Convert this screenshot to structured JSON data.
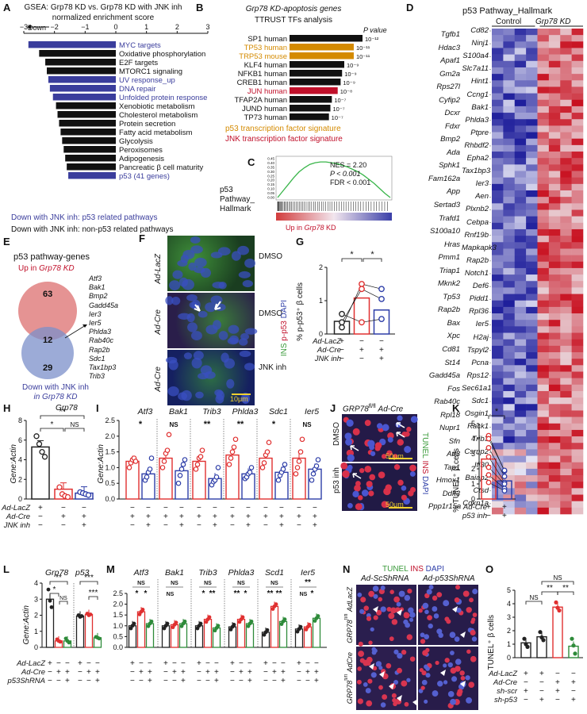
{
  "panels": {
    "A": {
      "letter": "A",
      "title1": "GSEA: Grp78 KD vs. Grp78 KD with JNK inh",
      "title2": "normalized enrichment score",
      "down_label": "Down",
      "ticks": [
        "−3",
        "−2",
        "−1",
        "0",
        "1",
        "2",
        "3"
      ],
      "colors": {
        "p53": "#3a3d9c",
        "other": "#111111"
      },
      "bars": [
        {
          "label": "MYC targets",
          "value": -2.85,
          "group": "p53"
        },
        {
          "label": "Oxidative phosphorylation",
          "value": -2.5,
          "group": "other"
        },
        {
          "label": "E2F targets",
          "value": -2.3,
          "group": "other"
        },
        {
          "label": "MTORC1 signaling",
          "value": -2.25,
          "group": "other"
        },
        {
          "label": "UV response_up",
          "value": -2.2,
          "group": "p53"
        },
        {
          "label": "DNA repair",
          "value": -2.15,
          "group": "p53"
        },
        {
          "label": "Unfolded protein response",
          "value": -2.05,
          "group": "p53"
        },
        {
          "label": "Xenobiotic metabolism",
          "value": -1.95,
          "group": "other"
        },
        {
          "label": "Cholesterol metabolism",
          "value": -1.9,
          "group": "other"
        },
        {
          "label": "Protein secretion",
          "value": -1.85,
          "group": "other"
        },
        {
          "label": "Fatty acid metabolism",
          "value": -1.8,
          "group": "other"
        },
        {
          "label": "Glycolysis",
          "value": -1.75,
          "group": "other"
        },
        {
          "label": "Peroxisomes",
          "value": -1.7,
          "group": "other"
        },
        {
          "label": "Adipogenesis",
          "value": -1.65,
          "group": "other"
        },
        {
          "label": "Pancreatic β cell maturity",
          "value": -1.6,
          "group": "other"
        },
        {
          "label": "p53 (41 genes)",
          "value": -1.55,
          "group": "p53"
        }
      ],
      "legend_p53": "Down with JNK inh: p53 related pathways",
      "legend_other": "Down with JNK inh: non-p53 related pathways"
    },
    "B": {
      "letter": "B",
      "title1": "Grp78 KD-apoptosis genes",
      "title2": "TTRUST TFs analysis",
      "pvalue_header": "P value",
      "bars": [
        {
          "label": "SP1 human",
          "len": 1.0,
          "p": "10⁻¹²",
          "color": "#111111"
        },
        {
          "label": "TP53 human",
          "len": 0.88,
          "p": "10⁻¹¹",
          "color": "#d48a00"
        },
        {
          "label": "TRP53 mouse",
          "len": 0.88,
          "p": "10⁻¹¹",
          "color": "#d48a00"
        },
        {
          "label": "KLF4 human",
          "len": 0.75,
          "p": "10⁻⁹",
          "color": "#111111"
        },
        {
          "label": "NFKB1 human",
          "len": 0.72,
          "p": "10⁻⁹",
          "color": "#111111"
        },
        {
          "label": "CREB1 human",
          "len": 0.7,
          "p": "10⁻⁹",
          "color": "#111111"
        },
        {
          "label": "JUN human",
          "len": 0.66,
          "p": "10⁻⁸",
          "color": "#c0102a"
        },
        {
          "label": "TFAP2A human",
          "len": 0.58,
          "p": "10⁻⁷",
          "color": "#111111"
        },
        {
          "label": "JUND human",
          "len": 0.56,
          "p": "10⁻⁷",
          "color": "#111111"
        },
        {
          "label": "TP73 human",
          "len": 0.54,
          "p": "10⁻⁷",
          "color": "#111111"
        }
      ],
      "sig1": "p53 transcription factor signature",
      "sig2": "JNK transcription factor signature"
    },
    "C": {
      "letter": "C",
      "yticks": [
        "0.45",
        "0.40",
        "0.35",
        "0.30",
        "0.25",
        "0.20",
        "0.15",
        "0.10",
        "0.05",
        "0.00"
      ],
      "nes": "NES = 2.20",
      "p": "P < 0.001",
      "fdr": "FDR < 0.001",
      "label1": "p53",
      "label2": "Pathway_",
      "label3": "Hallmark",
      "xlabel": "Up in Grp78 KD",
      "curve": [
        0,
        0.08,
        0.16,
        0.24,
        0.31,
        0.36,
        0.4,
        0.42,
        0.43,
        0.43,
        0.42,
        0.41,
        0.39,
        0.37,
        0.34,
        0.31,
        0.27,
        0.22,
        0.17,
        0.11,
        0.05,
        0.0
      ]
    },
    "D": {
      "letter": "D",
      "title": "p53 Pathway_Hallmark",
      "col_control": "Control",
      "col_kd": "Grp78 KD",
      "genes_left": [
        "Tgfb1",
        "Hdac3",
        "Apaf1",
        "Gm2a",
        "Rps27l",
        "Cyfip2",
        "Dcxr",
        "Fdxr",
        "Bmp2",
        "Ada",
        "Sphk1",
        "Fam162a",
        "App",
        "Sertad3",
        "Trafd1",
        "S100a10",
        "Hras",
        "Pmm1",
        "Triap1",
        "Mknk2",
        "Tp53",
        "Rap2b",
        "Bax",
        "Xpc",
        "Cd81",
        "St14",
        "Gadd45a",
        "Fos",
        "Rab40c",
        "Rpl18",
        "Nupr1",
        "Sfn",
        "Atf3",
        "Tap1",
        "Hmox1",
        "Ddit3",
        "Ppp1r15a"
      ],
      "genes_right": [
        "Cd82",
        "Ninj1",
        "S100a4",
        "Slc7a11",
        "Hint1",
        "Ccng1",
        "Bak1",
        "Phlda3",
        "Ptpre",
        "Rhbdf2",
        "Epha2",
        "Tax1bp3",
        "Ier3",
        "Aen",
        "Plxnb2",
        "Cebpa",
        "Rnf19b",
        "Mapkapk3",
        "Rap2b",
        "Notch1",
        "Def6",
        "Pidd1",
        "Rpl36",
        "Ier5",
        "H2aj",
        "Tspyl2",
        "Pcna",
        "Rps12",
        "Sec61a1",
        "Sdc1",
        "Osgin1",
        "Rack1",
        "Trib3",
        "Csrnp2",
        "Ifi30",
        "Baiap2",
        "Ctsd",
        "Cdkn1a"
      ]
    },
    "E": {
      "letter": "E",
      "title": "p53 pathway-genes",
      "up_label": "Up in Grp78 KD",
      "down_label1": "Down with JNK inh",
      "down_label2": "in Grp78 KD",
      "n_up": "63",
      "n_both": "12",
      "n_down": "29",
      "genes": [
        "Atf3",
        "Bak1",
        "Bmp2",
        "Gadd45a",
        "Ier3",
        "Ier5",
        "Phlda3",
        "Rab40c",
        "Rap2b",
        "Sdc1",
        "Tax1bp3",
        "Trib3"
      ]
    },
    "F": {
      "letter": "F",
      "rows": [
        {
          "side": "Ad-LacZ",
          "cond": "DMSO"
        },
        {
          "side": "Ad-Cre",
          "cond": "DMSO"
        },
        {
          "side": "Ad-Cre",
          "cond": "JNK inh"
        }
      ],
      "stain_ins": "INS",
      "stain_pp53": "p-p53",
      "stain_dapi": "DAPI",
      "scale": "10μm"
    },
    "G": {
      "letter": "G",
      "ylabel": "% p-p53⁺ β cells",
      "yticks": [
        "0",
        "1",
        "2"
      ],
      "ymax": 2,
      "bars": [
        0.38,
        1.08,
        0.72
      ],
      "colors": [
        "#222222",
        "#e03030",
        "#2e3ea8"
      ],
      "points": [
        [
          0.2,
          0.35,
          0.6
        ],
        [
          1.5,
          1.35,
          0.35
        ],
        [
          1.35,
          1.05,
          0.45
        ]
      ],
      "sig": [
        "*",
        "*"
      ],
      "rows": [
        {
          "label": "Ad-LacZ",
          "marks": [
            "+",
            "−",
            "−"
          ]
        },
        {
          "label": "Ad-Cre",
          "marks": [
            "−",
            "+",
            "+"
          ]
        },
        {
          "label": "JNK inh",
          "marks": [
            "−",
            "−",
            "+"
          ]
        }
      ]
    },
    "H": {
      "letter": "H",
      "title": "Grp78",
      "ylabel": "Gene:Actin",
      "yticks": [
        "0",
        "2",
        "4",
        "6",
        "8"
      ],
      "ymax": 8,
      "bars": [
        5.3,
        1.0,
        0.6
      ],
      "colors": [
        "#222222",
        "#e03030",
        "#2e3ea8"
      ],
      "points": [
        [
          6.4,
          5.6,
          4.8,
          4.3
        ],
        [
          1.2,
          0.5,
          0.3,
          0.2
        ],
        [
          0.7,
          0.6,
          0.5,
          0.4
        ]
      ],
      "sig_top": "**",
      "sig1": "*",
      "sig_ns": "NS",
      "rows": [
        {
          "label": "Ad-LacZ",
          "marks": [
            "+",
            "−",
            "−"
          ]
        },
        {
          "label": "Ad-Cre",
          "marks": [
            "−",
            "+",
            "+"
          ]
        },
        {
          "label": "JNK inh",
          "marks": [
            "−",
            "−",
            "+"
          ]
        }
      ]
    },
    "I": {
      "letter": "I",
      "ylabel": "Gene:Actin",
      "yticks": [
        "0.0",
        "0.5",
        "1.0",
        "1.5",
        "2.0",
        "2.5"
      ],
      "ymax": 2.5,
      "genes": [
        {
          "name": "Atf3",
          "sig": "*",
          "vals": [
            1.2,
            0.8
          ],
          "pts": [
            [
              1.0,
              1.15,
              1.25,
              1.3,
              1.2
            ],
            [
              0.6,
              0.7,
              0.85,
              0.95,
              1.3
            ]
          ]
        },
        {
          "name": "Bak1",
          "sig": "NS",
          "vals": [
            1.3,
            0.9
          ],
          "pts": [
            [
              1.0,
              1.2,
              1.45,
              1.55,
              2.05
            ],
            [
              0.5,
              0.75,
              0.95,
              1.1,
              1.25
            ]
          ]
        },
        {
          "name": "Trib3",
          "sig": "**",
          "vals": [
            1.2,
            0.65
          ],
          "pts": [
            [
              0.95,
              1.1,
              1.3,
              1.35,
              1.55
            ],
            [
              0.45,
              0.55,
              0.6,
              0.7,
              1.0
            ]
          ]
        },
        {
          "name": "Phlda3",
          "sig": "**",
          "vals": [
            1.4,
            0.8
          ],
          "pts": [
            [
              1.1,
              1.3,
              1.5,
              1.65,
              1.9
            ],
            [
              0.65,
              0.7,
              0.8,
              0.85,
              1.0
            ]
          ]
        },
        {
          "name": "Sdc1",
          "sig": "*",
          "vals": [
            1.3,
            0.85
          ],
          "pts": [
            [
              1.0,
              1.15,
              1.4,
              1.5,
              1.8
            ],
            [
              0.6,
              0.75,
              0.85,
              0.95,
              1.1
            ]
          ]
        },
        {
          "name": "Ier5",
          "sig": "NS",
          "vals": [
            1.3,
            0.95
          ],
          "pts": [
            [
              0.8,
              1.0,
              1.2,
              1.5,
              1.9
            ],
            [
              0.6,
              0.8,
              0.95,
              1.05,
              1.25
            ]
          ]
        }
      ],
      "rows": [
        {
          "label": "",
          "marks": [
            "−",
            "−"
          ]
        },
        {
          "label": "",
          "marks": [
            "+",
            "+"
          ]
        },
        {
          "label": "",
          "marks": [
            "−",
            "+"
          ]
        }
      ]
    },
    "J": {
      "letter": "J",
      "title_gene": "GRP78",
      "title_sup": "fl/fl",
      "title_rest": "Ad-Cre",
      "rows": [
        "DMSO",
        "p53 inh"
      ],
      "stain_tunel": "TUNEL",
      "stain_ins": "INS",
      "stain_dapi": "DAPI",
      "scale": "50μm"
    },
    "K": {
      "letter": "K",
      "ylabel": "% TUNEL⁺ β cells",
      "yticks": [
        "0",
        "1",
        "2",
        "3",
        "4",
        "5"
      ],
      "ymax": 5,
      "bars": [
        2.65,
        1.2
      ],
      "colors": [
        "#e03030",
        "#2e3ea8"
      ],
      "pairs": [
        [
          4.2,
          1.85
        ],
        [
          4.0,
          1.9
        ],
        [
          3.4,
          1.5
        ],
        [
          2.8,
          1.1
        ],
        [
          2.1,
          1.0
        ],
        [
          1.6,
          0.7
        ],
        [
          1.1,
          0.55
        ]
      ],
      "sig": "*",
      "rows": [
        {
          "label": "Ad-Cre",
          "marks": [
            "+",
            "+"
          ]
        },
        {
          "label": "p53 inh",
          "marks": [
            "−",
            "+"
          ]
        }
      ]
    },
    "L": {
      "letter": "L",
      "ylabel": "Gene:Actin",
      "yticks": [
        "0",
        "1",
        "2",
        "3",
        "4"
      ],
      "ymax": 4,
      "groups": [
        {
          "name": "Grp78",
          "vals": [
            3.0,
            0.4,
            0.4
          ],
          "pts": [
            [
              3.6,
              2.9,
              2.5
            ],
            [
              0.5,
              0.4,
              0.35
            ],
            [
              0.55,
              0.4,
              0.3
            ]
          ]
        },
        {
          "name": "p53",
          "vals": [
            1.95,
            2.05,
            0.6
          ],
          "pts": [
            [
              2.0,
              1.9,
              1.95
            ],
            [
              2.1,
              2.0,
              2.05
            ],
            [
              0.65,
              0.6,
              0.55
            ]
          ]
        }
      ],
      "colors": [
        "#222222",
        "#e03030",
        "#2e8b3a"
      ],
      "sig": [
        "**",
        "*",
        "NS",
        "***",
        "***"
      ],
      "rows": [
        {
          "label": "Ad-LacZ",
          "marks": [
            "+",
            "−",
            "−",
            "+",
            "−",
            "−"
          ]
        },
        {
          "label": "Ad-Cre",
          "marks": [
            "−",
            "+",
            "+",
            "−",
            "+",
            "+"
          ]
        },
        {
          "label": "p53ShRNA",
          "marks": [
            "−",
            "−",
            "+",
            "−",
            "−",
            "+"
          ]
        }
      ]
    },
    "M": {
      "letter": "M",
      "yticks": [
        "0.0",
        "0.5",
        "1.0",
        "1.5",
        "2.0",
        "2.5"
      ],
      "ymax": 2.5,
      "genes": [
        {
          "name": "Atf3",
          "vals": [
            1.0,
            1.65,
            1.1
          ],
          "sigs": [
            "NS",
            "*",
            "*"
          ]
        },
        {
          "name": "Bak1",
          "vals": [
            1.0,
            1.05,
            1.1
          ],
          "sigs": [
            "NS",
            "NS",
            ""
          ]
        },
        {
          "name": "Trib3",
          "vals": [
            1.0,
            1.3,
            0.9
          ],
          "sigs": [
            "NS",
            "*",
            "**"
          ]
        },
        {
          "name": "Phlda3",
          "vals": [
            0.95,
            1.3,
            1.1
          ],
          "sigs": [
            "NS",
            "**",
            "*"
          ]
        },
        {
          "name": "Scd1",
          "vals": [
            0.7,
            1.9,
            1.2
          ],
          "sigs": [
            "NS",
            "**",
            "**"
          ]
        },
        {
          "name": "Ier5",
          "vals": [
            0.85,
            0.95,
            1.35
          ],
          "sigs": [
            "**",
            "NS",
            "*"
          ]
        }
      ],
      "colors": [
        "#222222",
        "#e03030",
        "#2e8b3a"
      ],
      "rows": [
        {
          "marks": [
            "+",
            "−",
            "−"
          ]
        },
        {
          "marks": [
            "−",
            "+",
            "+"
          ]
        },
        {
          "marks": [
            "−",
            "−",
            "+"
          ]
        }
      ]
    },
    "N": {
      "letter": "N",
      "stain_tunel": "TUNEL",
      "stain_ins": "INS",
      "stain_dapi": "DAPI",
      "col1": "Ad-ScShRNA",
      "col2": "Ad-p53ShRNA",
      "row1_gene": "GRP78",
      "row1_sup": "fl/fl",
      "row1_rest": "AdLacZ",
      "row2_gene": "GRP78",
      "row2_sup": "fl/fl",
      "row2_rest": "AdCre"
    },
    "O": {
      "letter": "O",
      "ylabel": "TUNEL⁺ β cells",
      "yticks": [
        "0",
        "1",
        "2",
        "3",
        "4",
        "5"
      ],
      "ymax": 5,
      "bars": [
        1.1,
        1.55,
        3.75,
        0.85
      ],
      "colors": [
        "#222222",
        "#222222",
        "#e03030",
        "#2e8b3a"
      ],
      "points": [
        [
          1.4,
          1.0,
          0.8
        ],
        [
          1.9,
          1.5,
          1.3
        ],
        [
          4.1,
          3.7,
          3.5
        ],
        [
          1.4,
          0.9,
          0.3
        ]
      ],
      "sig": [
        "NS",
        "**",
        "**",
        "NS"
      ],
      "rows": [
        {
          "label": "Ad-LacZ",
          "marks": [
            "+",
            "+",
            "−",
            "−"
          ]
        },
        {
          "label": "Ad-Cre",
          "marks": [
            "−",
            "−",
            "+",
            "+"
          ]
        },
        {
          "label": "sh-scr",
          "marks": [
            "+",
            "−",
            "+",
            "−"
          ]
        },
        {
          "label": "sh-p53",
          "marks": [
            "−",
            "+",
            "−",
            "+"
          ]
        }
      ]
    }
  }
}
